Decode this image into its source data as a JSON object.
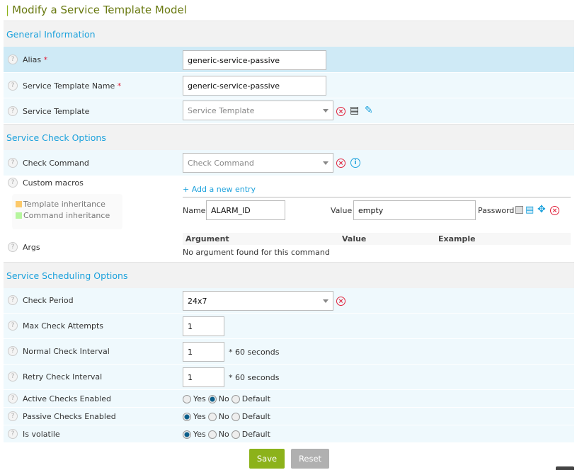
{
  "title": "Modify a Service Template Model",
  "sections": {
    "general": "General Information",
    "check": "Service Check Options",
    "scheduling": "Service Scheduling Options"
  },
  "fields": {
    "alias": {
      "label": "Alias",
      "required": "*",
      "value": "generic-service-passive"
    },
    "template_name": {
      "label": "Service Template Name",
      "required": "*",
      "value": "generic-service-passive"
    },
    "service_template": {
      "label": "Service Template",
      "placeholder": "Service Template"
    },
    "check_command": {
      "label": "Check Command",
      "placeholder": "Check Command"
    },
    "custom_macros": {
      "label": "Custom macros",
      "add_entry": "+ Add a new entry",
      "legend_template": "Template inheritance",
      "legend_command": "Command inheritance",
      "name_label": "Name",
      "name_value": "ALARM_ID",
      "value_label": "Value",
      "value_value": "empty",
      "password_label": "Password"
    },
    "args": {
      "label": "Args",
      "col_argument": "Argument",
      "col_value": "Value",
      "col_example": "Example",
      "empty": "No argument found for this command"
    },
    "check_period": {
      "label": "Check Period",
      "value": "24x7"
    },
    "max_check_attempts": {
      "label": "Max Check Attempts",
      "value": "1"
    },
    "normal_check_interval": {
      "label": "Normal Check Interval",
      "value": "1",
      "suffix": "* 60 seconds"
    },
    "retry_check_interval": {
      "label": "Retry Check Interval",
      "value": "1",
      "suffix": "* 60 seconds"
    },
    "active_checks": {
      "label": "Active Checks Enabled",
      "selected": "No"
    },
    "passive_checks": {
      "label": "Passive Checks Enabled",
      "selected": "Yes"
    },
    "is_volatile": {
      "label": "Is volatile",
      "selected": "Yes"
    }
  },
  "radio_options": {
    "yes": "Yes",
    "no": "No",
    "default": "Default"
  },
  "buttons": {
    "save": "Save",
    "reset": "Reset"
  },
  "colors": {
    "accent": "#1ca1dc",
    "save": "#8cb21a",
    "reset": "#b0b0b0",
    "error": "#e0203a"
  }
}
